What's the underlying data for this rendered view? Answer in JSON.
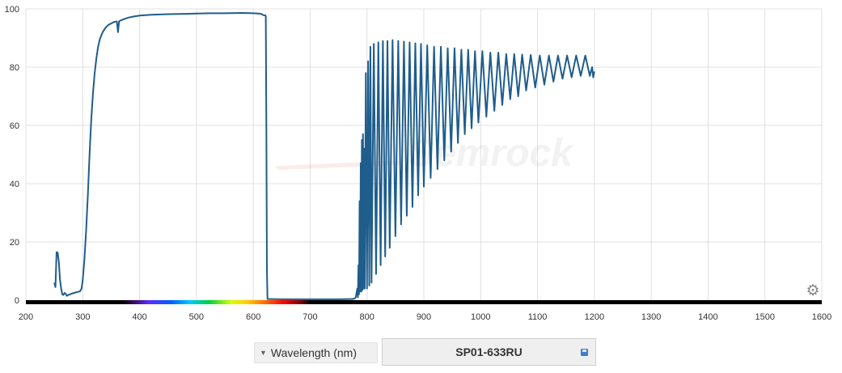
{
  "chart_data": {
    "type": "line",
    "title": "",
    "xlabel": "",
    "ylabel": "",
    "xlim": [
      200,
      1600
    ],
    "ylim": [
      0,
      100
    ],
    "x_ticks": [
      200,
      300,
      400,
      500,
      600,
      700,
      800,
      900,
      1000,
      1100,
      1200,
      1300,
      1400,
      1500,
      1600
    ],
    "y_ticks": [
      0,
      20,
      40,
      60,
      80,
      100
    ],
    "grid": true,
    "series": [
      {
        "color": "#1f5d8c",
        "points": [
          [
            250,
            6
          ],
          [
            252,
            4.5
          ],
          [
            254,
            16.5
          ],
          [
            256,
            16.3
          ],
          [
            258,
            13
          ],
          [
            260,
            7
          ],
          [
            262,
            4
          ],
          [
            264,
            2
          ],
          [
            266,
            1.8
          ],
          [
            268,
            2.5
          ],
          [
            270,
            2.2
          ],
          [
            272,
            1.5
          ],
          [
            275,
            1.8
          ],
          [
            280,
            2.2
          ],
          [
            285,
            2.5
          ],
          [
            290,
            2.8
          ],
          [
            295,
            3
          ],
          [
            298,
            4
          ],
          [
            300,
            7
          ],
          [
            303,
            14
          ],
          [
            306,
            24
          ],
          [
            309,
            36
          ],
          [
            312,
            50
          ],
          [
            315,
            62
          ],
          [
            318,
            71
          ],
          [
            321,
            78
          ],
          [
            324,
            83
          ],
          [
            327,
            87
          ],
          [
            330,
            89.5
          ],
          [
            335,
            92
          ],
          [
            340,
            93.5
          ],
          [
            345,
            94.5
          ],
          [
            350,
            95
          ],
          [
            355,
            95.5
          ],
          [
            360,
            95.7
          ],
          [
            362,
            92
          ],
          [
            364,
            95.8
          ],
          [
            370,
            96.3
          ],
          [
            380,
            97
          ],
          [
            390,
            97.4
          ],
          [
            400,
            97.7
          ],
          [
            420,
            98
          ],
          [
            450,
            98.2
          ],
          [
            480,
            98.3
          ],
          [
            500,
            98.4
          ],
          [
            520,
            98.5
          ],
          [
            550,
            98.5
          ],
          [
            580,
            98.6
          ],
          [
            600,
            98.5
          ],
          [
            610,
            98.4
          ],
          [
            615,
            98.2
          ],
          [
            618,
            97.8
          ],
          [
            621,
            97.8
          ],
          [
            622,
            97.5
          ],
          [
            623,
            60
          ],
          [
            624,
            10
          ],
          [
            625,
            0.4
          ],
          [
            650,
            0.3
          ],
          [
            700,
            0.3
          ],
          [
            750,
            0.3
          ],
          [
            775,
            0.4
          ],
          [
            780,
            0.8
          ],
          [
            783,
            4
          ],
          [
            784,
            1
          ],
          [
            785,
            12
          ],
          [
            786,
            2
          ],
          [
            787,
            34
          ],
          [
            788,
            3
          ],
          [
            789,
            47
          ],
          [
            790,
            3
          ],
          [
            791,
            55
          ],
          [
            792,
            3.5
          ],
          [
            793,
            57
          ],
          [
            794,
            4
          ],
          [
            795,
            52
          ],
          [
            796,
            4
          ],
          [
            798,
            78
          ],
          [
            800,
            4
          ],
          [
            802,
            82
          ],
          [
            804,
            5
          ],
          [
            806,
            87
          ],
          [
            808,
            6
          ],
          [
            812,
            88
          ],
          [
            816,
            9
          ],
          [
            820,
            88.5
          ],
          [
            824,
            12
          ],
          [
            828,
            89
          ],
          [
            832,
            15
          ],
          [
            836,
            89
          ],
          [
            840,
            18
          ],
          [
            845,
            89.3
          ],
          [
            850,
            22
          ],
          [
            855,
            89
          ],
          [
            860,
            26
          ],
          [
            865,
            88.8
          ],
          [
            870,
            29
          ],
          [
            875,
            88.5
          ],
          [
            880,
            32
          ],
          [
            885,
            88.2
          ],
          [
            890,
            36
          ],
          [
            895,
            88
          ],
          [
            900,
            39
          ],
          [
            906,
            87.5
          ],
          [
            912,
            42
          ],
          [
            918,
            87
          ],
          [
            924,
            45
          ],
          [
            930,
            87
          ],
          [
            936,
            48
          ],
          [
            942,
            86.5
          ],
          [
            948,
            51
          ],
          [
            954,
            86.5
          ],
          [
            960,
            54
          ],
          [
            966,
            86
          ],
          [
            972,
            57
          ],
          [
            978,
            86
          ],
          [
            984,
            59
          ],
          [
            990,
            85.5
          ],
          [
            996,
            61
          ],
          [
            1003,
            85.5
          ],
          [
            1010,
            63
          ],
          [
            1017,
            85
          ],
          [
            1024,
            65
          ],
          [
            1031,
            85
          ],
          [
            1038,
            67
          ],
          [
            1045,
            84.5
          ],
          [
            1052,
            69
          ],
          [
            1059,
            84.5
          ],
          [
            1066,
            70
          ],
          [
            1073,
            84.3
          ],
          [
            1080,
            72
          ],
          [
            1088,
            84.2
          ],
          [
            1096,
            73
          ],
          [
            1104,
            84
          ],
          [
            1112,
            74
          ],
          [
            1120,
            84
          ],
          [
            1128,
            75
          ],
          [
            1136,
            84
          ],
          [
            1144,
            76
          ],
          [
            1152,
            84
          ],
          [
            1160,
            76.5
          ],
          [
            1168,
            84
          ],
          [
            1176,
            77
          ],
          [
            1184,
            84
          ],
          [
            1192,
            77
          ],
          [
            1196,
            80
          ],
          [
            1198,
            76.5
          ],
          [
            1200,
            78.5
          ]
        ]
      }
    ],
    "watermark": "Semrock",
    "spectrum_bar": true
  },
  "controls": {
    "axis_select_label": "Wavelength (nm)",
    "filter_name": "SP01-633RU",
    "settings_icon": "gear-icon",
    "save_icon": "save-icon"
  },
  "colors": {
    "series": "#1f5d8c",
    "grid": "#e0e0e0",
    "axis_bar": "#000000"
  }
}
